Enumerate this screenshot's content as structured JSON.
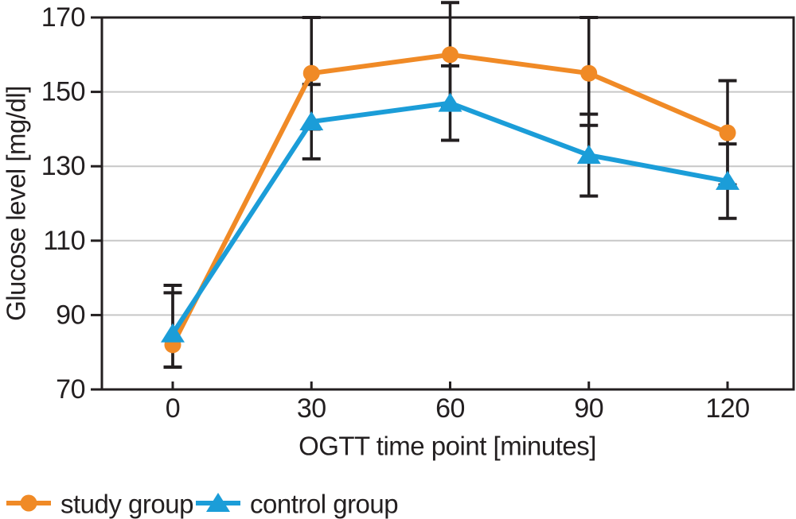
{
  "chart_data": {
    "type": "line",
    "title": "",
    "xlabel": "OGTT time point [minutes]",
    "ylabel": "Glucose level [mg/dl]",
    "x": [
      0,
      30,
      60,
      90,
      120
    ],
    "xticks": [
      0,
      30,
      60,
      90,
      120
    ],
    "yticks": [
      70,
      90,
      110,
      130,
      150,
      170
    ],
    "ylim": [
      70,
      170
    ],
    "xlim": [
      -15,
      134
    ],
    "grid": "horizontal-light-gray",
    "legend_position": "bottom-left",
    "colors": {
      "axis": "#231F20",
      "gridline": "#C7C7C7",
      "study": "#F08A26",
      "control": "#1B9DD8",
      "background": "#FFFFFF"
    },
    "series": [
      {
        "name": "study group",
        "marker": "circle",
        "color": "#F08A26",
        "values": [
          82,
          155,
          160,
          155,
          139
        ],
        "err_low": [
          76,
          140,
          146,
          141,
          125
        ],
        "err_high": [
          96,
          170,
          174,
          170,
          153
        ]
      },
      {
        "name": "control group",
        "marker": "triangle",
        "color": "#1B9DD8",
        "values": [
          85,
          142,
          147,
          133,
          126
        ],
        "err_low": [
          76,
          132,
          137,
          122,
          116
        ],
        "err_high": [
          98,
          152,
          157,
          144,
          136
        ]
      }
    ]
  }
}
